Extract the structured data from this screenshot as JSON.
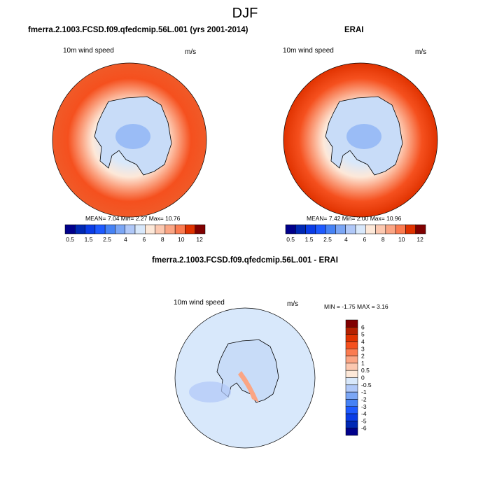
{
  "title": "DJF",
  "chart_data": [
    {
      "type": "heatmap",
      "title": "fmerra.2.1003.FCSD.f09.qfedcmip.56L.001 (yrs 2001-2014)",
      "variable": "10m wind speed",
      "units": "m/s",
      "stats": "MEAN=  7.04  Min=  2.27  Max= 10.76",
      "colorbar": {
        "labels": [
          "0.5",
          "1.5",
          "2.5",
          "4",
          "6",
          "8",
          "10",
          "12"
        ],
        "colors": [
          "#00008b",
          "#0028b4",
          "#0a3ce6",
          "#1e5aff",
          "#4682f5",
          "#7ba6f5",
          "#b0c8f8",
          "#d8e8fb",
          "#fde8d8",
          "#fcc8b0",
          "#fba584",
          "#fb7b50",
          "#f5501e",
          "#e03200",
          "#b42000",
          "#800000"
        ]
      }
    },
    {
      "type": "heatmap",
      "title": "ERAI",
      "variable": "10m wind speed",
      "units": "m/s",
      "stats": "MEAN=  7.42  Min=  2.00  Max= 10.96",
      "colorbar": {
        "labels": [
          "0.5",
          "1.5",
          "2.5",
          "4",
          "6",
          "8",
          "10",
          "12"
        ]
      }
    },
    {
      "type": "heatmap",
      "title": "fmerra.2.1003.FCSD.f09.qfedcmip.56L.001 - ERAI",
      "variable": "10m wind speed",
      "units": "m/s",
      "stats": "MIN =  -1.75 MAX =   3.16",
      "colorbar": {
        "labels": [
          "6",
          "5",
          "4",
          "3",
          "2",
          "1",
          "0.5",
          "0",
          "-0.5",
          "-1",
          "-2",
          "-3",
          "-4",
          "-5",
          "-6"
        ]
      }
    }
  ]
}
